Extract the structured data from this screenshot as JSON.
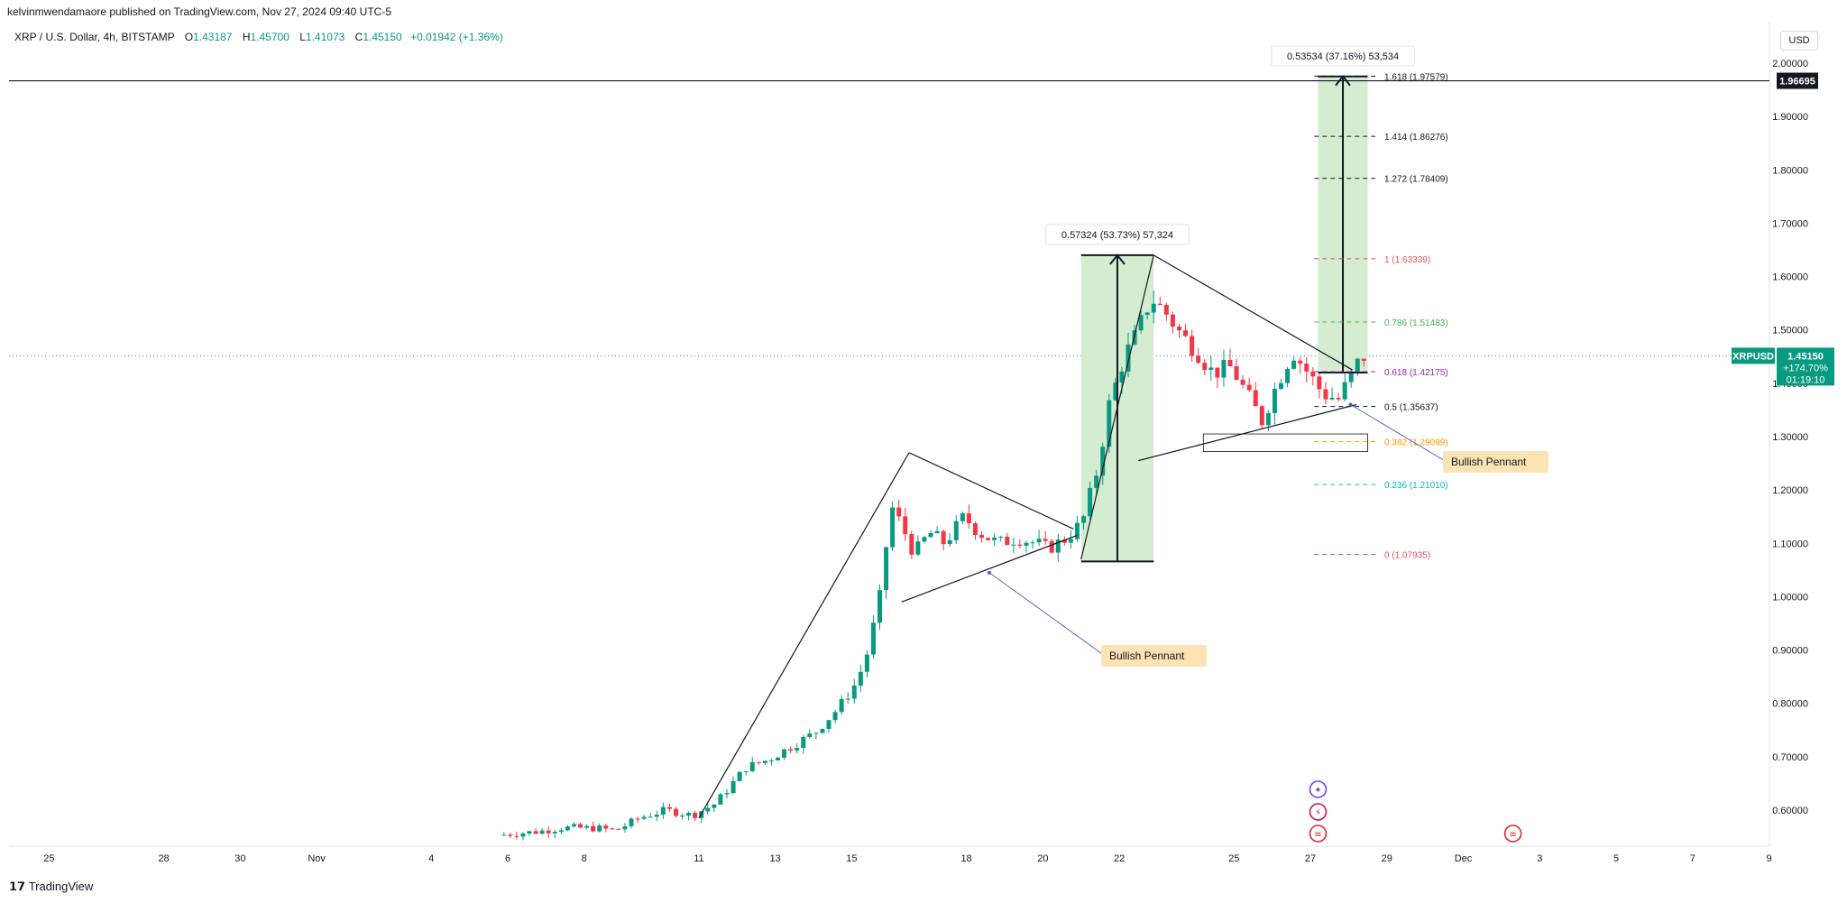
{
  "header": {
    "published": "kelvinmwendamaore published on TradingView.com, Nov 27, 2024 09:40 UTC-5"
  },
  "symbol": {
    "name": "XRP / U.S. Dollar, 4h, BITSTAMP",
    "open_label": "O",
    "open": "1.43187",
    "high_label": "H",
    "high": "1.45700",
    "low_label": "L",
    "low": "1.41073",
    "close_label": "C",
    "close": "1.45150",
    "change": "+0.01942 (+1.36%)"
  },
  "currency": "USD",
  "footer": {
    "logo_text": "TradingView"
  },
  "price_tags": {
    "level_line": "1.96695",
    "ticker": "XRPUSD",
    "last_price": "1.45150",
    "change_pct": "+174.70%",
    "countdown": "01:19:10"
  },
  "measure_labels": {
    "first": "0.57324 (53.73%) 57,324",
    "second": "0.53534 (37.16%) 53,534"
  },
  "annotations": {
    "pennant_1": "Bullish Pennant",
    "pennant_2": "Bullish Pennant"
  },
  "fib_levels": [
    {
      "label": "1.618 (1.97579)",
      "price": 1.97579,
      "color": "#131722"
    },
    {
      "label": "1.414 (1.86276)",
      "price": 1.86276,
      "color": "#131722"
    },
    {
      "label": "1.272 (1.78409)",
      "price": 1.78409,
      "color": "#131722"
    },
    {
      "label": "1 (1.63339)",
      "price": 1.63339,
      "color": "#e05260"
    },
    {
      "label": "0.786 (1.51483)",
      "price": 1.51483,
      "color": "#4caf50"
    },
    {
      "label": "0.618 (1.42175)",
      "price": 1.42175,
      "color": "#9c27b0"
    },
    {
      "label": "0.5 (1.35637)",
      "price": 1.35637,
      "color": "#131722"
    },
    {
      "label": "0.382 (1.29099)",
      "price": 1.29099,
      "color": "#ff9800"
    },
    {
      "label": "0.236 (1.21010)",
      "price": 1.2101,
      "color": "#00bcd4"
    },
    {
      "label": "0 (1.07935)",
      "price": 1.07935,
      "color": "#e05260"
    }
  ],
  "colors": {
    "up": "#089981",
    "down": "#f23645",
    "accent": "#089981",
    "pennant_bg": "#fce3b4",
    "measure_fill": "#d4ecd0"
  },
  "chart_data": {
    "type": "candlestick",
    "title": "XRP / U.S. Dollar, 4h, BITSTAMP",
    "ylim": [
      0.55,
      2.05
    ],
    "y_ticks": [
      "2.00000",
      "1.90000",
      "1.80000",
      "1.70000",
      "1.60000",
      "1.50000",
      "1.40000",
      "1.30000",
      "1.20000",
      "1.10000",
      "1.00000",
      "0.90000",
      "0.80000",
      "0.70000",
      "0.60000"
    ],
    "x_ticks": [
      "25",
      "28",
      "30",
      "Nov",
      "4",
      "6",
      "8",
      "11",
      "13",
      "15",
      "18",
      "20",
      "22",
      "25",
      "27",
      "29",
      "Dec",
      "3",
      "5",
      "7",
      "9"
    ],
    "x_tick_days": [
      -6,
      -3,
      -1,
      1,
      4,
      6,
      8,
      11,
      13,
      15,
      18,
      20,
      22,
      25,
      27,
      29,
      31,
      33,
      35,
      37,
      39
    ],
    "x_axis": "trading days (day of month; 31 = Dec 1)",
    "price_path": [
      [
        5.9,
        0.553
      ],
      [
        7.0,
        0.56
      ],
      [
        7.6,
        0.567
      ],
      [
        8.5,
        0.566
      ],
      [
        9.0,
        0.562
      ],
      [
        9.6,
        0.585
      ],
      [
        10.3,
        0.6
      ],
      [
        11.0,
        0.59
      ],
      [
        11.6,
        0.612
      ],
      [
        12.4,
        0.68
      ],
      [
        13.0,
        0.695
      ],
      [
        13.6,
        0.72
      ],
      [
        14.2,
        0.745
      ],
      [
        14.8,
        0.79
      ],
      [
        15.3,
        0.84
      ],
      [
        15.6,
        0.9
      ],
      [
        15.9,
        1.0
      ],
      [
        16.2,
        1.17
      ],
      [
        16.5,
        1.13
      ],
      [
        16.8,
        1.08
      ],
      [
        17.2,
        1.12
      ],
      [
        17.6,
        1.1
      ],
      [
        18.1,
        1.15
      ],
      [
        18.5,
        1.12
      ],
      [
        19.0,
        1.1
      ],
      [
        19.5,
        1.11
      ],
      [
        20.0,
        1.1
      ],
      [
        20.3,
        1.09
      ],
      [
        20.8,
        1.11
      ],
      [
        21.2,
        1.14
      ],
      [
        21.6,
        1.24
      ],
      [
        21.9,
        1.36
      ],
      [
        22.3,
        1.45
      ],
      [
        22.6,
        1.49
      ],
      [
        23.0,
        1.56
      ],
      [
        23.4,
        1.53
      ],
      [
        23.8,
        1.49
      ],
      [
        24.2,
        1.46
      ],
      [
        24.6,
        1.42
      ],
      [
        25.1,
        1.43
      ],
      [
        25.5,
        1.38
      ],
      [
        25.9,
        1.33
      ],
      [
        26.3,
        1.4
      ],
      [
        26.7,
        1.46
      ],
      [
        27.1,
        1.42
      ],
      [
        27.5,
        1.38
      ],
      [
        27.9,
        1.37
      ],
      [
        28.2,
        1.41
      ],
      [
        28.5,
        1.45
      ]
    ]
  }
}
